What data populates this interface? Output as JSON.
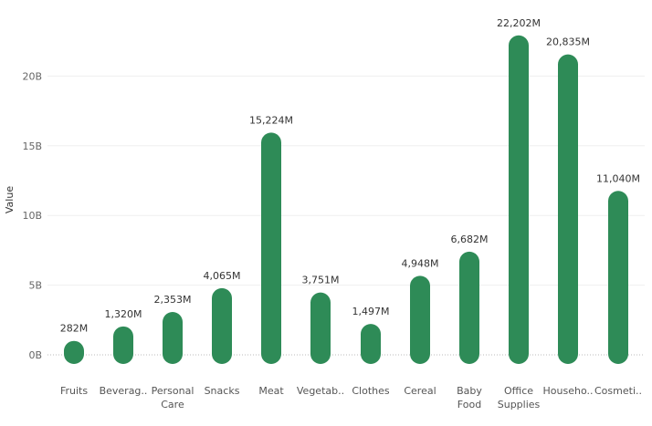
{
  "chart_data": {
    "type": "bar",
    "title": "",
    "xlabel": "",
    "ylabel": "Value",
    "ylim": [
      -1000,
      24000
    ],
    "y_ticks": [
      {
        "value": 0,
        "label": "0B"
      },
      {
        "value": 5000,
        "label": "5B"
      },
      {
        "value": 10000,
        "label": "10B"
      },
      {
        "value": 15000,
        "label": "15B"
      },
      {
        "value": 20000,
        "label": "20B"
      }
    ],
    "categories": [
      [
        "Fruits"
      ],
      [
        "Beverag.."
      ],
      [
        "Personal",
        "Care"
      ],
      [
        "Snacks"
      ],
      [
        "Meat"
      ],
      [
        "Vegetab.."
      ],
      [
        "Clothes"
      ],
      [
        "Cereal"
      ],
      [
        "Baby",
        "Food"
      ],
      [
        "Office",
        "Supplies"
      ],
      [
        "Househo.."
      ],
      [
        "Cosmeti.."
      ]
    ],
    "values": [
      282,
      1320,
      2353,
      4065,
      15224,
      3751,
      1497,
      4948,
      6682,
      22202,
      20835,
      11040
    ],
    "value_labels": [
      "282M",
      "1,320M",
      "2,353M",
      "4,065M",
      "15,224M",
      "3,751M",
      "1,497M",
      "4,948M",
      "6,682M",
      "22,202M",
      "20,835M",
      "11,040M"
    ],
    "bar_color": "#2e8b57",
    "grid": true,
    "legend": "none"
  }
}
